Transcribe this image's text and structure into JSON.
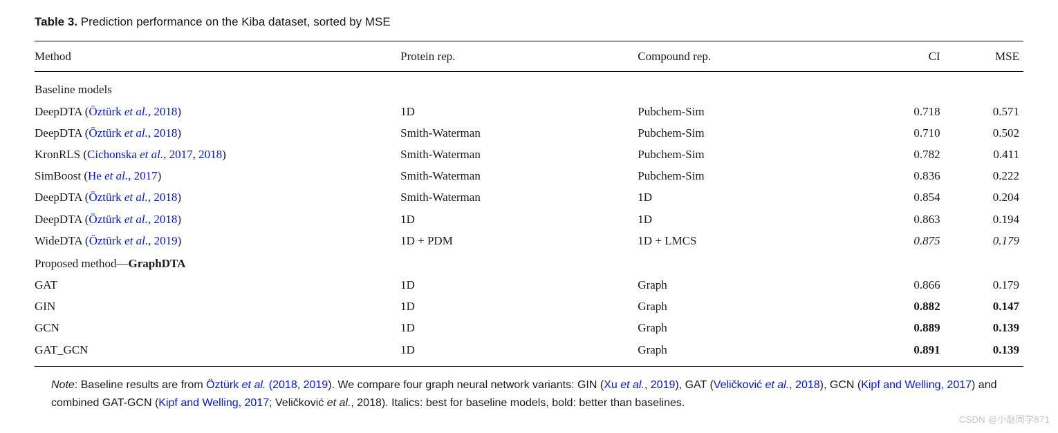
{
  "caption": {
    "label": "Table 3.",
    "text": "Prediction performance on the Kiba dataset, sorted by MSE"
  },
  "headers": {
    "method": "Method",
    "protein": "Protein rep.",
    "compound": "Compound rep.",
    "ci": "CI",
    "mse": "MSE"
  },
  "sections": {
    "baseline_label": "Baseline models",
    "proposed_prefix": "Proposed method—",
    "proposed_name": "GraphDTA"
  },
  "baseline_rows": [
    {
      "method": "DeepDTA",
      "cite": "Öztürk ",
      "cite_it": "et al.",
      "cite_year": ", 2018",
      "protein": "1D",
      "compound": "Pubchem-Sim",
      "ci": "0.718",
      "mse": "0.571",
      "ci_style": "",
      "mse_style": ""
    },
    {
      "method": "DeepDTA",
      "cite": "Öztürk ",
      "cite_it": "et al.",
      "cite_year": ", 2018",
      "protein": "Smith-Waterman",
      "compound": "Pubchem-Sim",
      "ci": "0.710",
      "mse": "0.502",
      "ci_style": "",
      "mse_style": ""
    },
    {
      "method": "KronRLS",
      "cite": "Cichonska ",
      "cite_it": "et al.",
      "cite_year": ", 2017",
      "cite_year2": ", 2018",
      "protein": "Smith-Waterman",
      "compound": "Pubchem-Sim",
      "ci": "0.782",
      "mse": "0.411",
      "ci_style": "",
      "mse_style": ""
    },
    {
      "method": "SimBoost",
      "cite": "He ",
      "cite_it": "et al.",
      "cite_year": ", 2017",
      "protein": "Smith-Waterman",
      "compound": "Pubchem-Sim",
      "ci": "0.836",
      "mse": "0.222",
      "ci_style": "",
      "mse_style": ""
    },
    {
      "method": "DeepDTA",
      "cite": "Öztürk ",
      "cite_it": "et al.",
      "cite_year": ", 2018",
      "protein": "Smith-Waterman",
      "compound": "1D",
      "ci": "0.854",
      "mse": "0.204",
      "ci_style": "",
      "mse_style": ""
    },
    {
      "method": "DeepDTA",
      "cite": "Öztürk ",
      "cite_it": "et al.",
      "cite_year": ", 2018",
      "protein": "1D",
      "compound": "1D",
      "ci": "0.863",
      "mse": "0.194",
      "ci_style": "",
      "mse_style": ""
    },
    {
      "method": "WideDTA",
      "cite": "Öztürk ",
      "cite_it": "et al.",
      "cite_year": ", 2019",
      "protein": "1D + PDM",
      "compound": "1D + LMCS",
      "ci": "0.875",
      "mse": "0.179",
      "ci_style": "ital",
      "mse_style": "ital"
    }
  ],
  "proposed_rows": [
    {
      "method": "GAT",
      "protein": "1D",
      "compound": "Graph",
      "ci": "0.866",
      "mse": "0.179",
      "ci_style": "",
      "mse_style": ""
    },
    {
      "method": "GIN",
      "protein": "1D",
      "compound": "Graph",
      "ci": "0.882",
      "mse": "0.147",
      "ci_style": "bold",
      "mse_style": "bold"
    },
    {
      "method": "GCN",
      "protein": "1D",
      "compound": "Graph",
      "ci": "0.889",
      "mse": "0.139",
      "ci_style": "bold",
      "mse_style": "bold"
    },
    {
      "method": "GAT_GCN",
      "protein": "1D",
      "compound": "Graph",
      "ci": "0.891",
      "mse": "0.139",
      "ci_style": "bold",
      "mse_style": "bold"
    }
  ],
  "note": {
    "label": "Note",
    "p1": ": Baseline results are from ",
    "c1_a": "Öztürk ",
    "c1_it": "et al.",
    "c1_b": " (2018",
    "c1_c": ", ",
    "c1_d": "2019",
    "c1_e": ")",
    "p2": ". We compare four graph neural network variants: GIN (",
    "c2_a": "Xu ",
    "c2_it": "et al.",
    "c2_b": ", 2019",
    "p3": "), GAT (",
    "c3_a": "Veličković ",
    "c3_it": "et al.",
    "c3_b": ", 2018",
    "p4": "), GCN (",
    "c4_a": "Kipf and Welling, 2017",
    "p5": ") and combined GAT-GCN (",
    "c5_a": "Kipf and Welling, 2017",
    "p6": "; Veličković ",
    "c6_it": "et al.",
    "p7": ", 2018). Italics: best for baseline models, bold: better than baselines."
  },
  "watermark": "CSDN @小赵同学871",
  "colors": {
    "link": "#0015e6",
    "text": "#1a1a1a",
    "rule": "#000000",
    "bg": "#ffffff",
    "watermark": "rgba(120,120,120,0.45)"
  },
  "column_widths_pct": {
    "method": 37,
    "protein": 24,
    "compound": 22,
    "ci": 9,
    "mse": 8
  }
}
